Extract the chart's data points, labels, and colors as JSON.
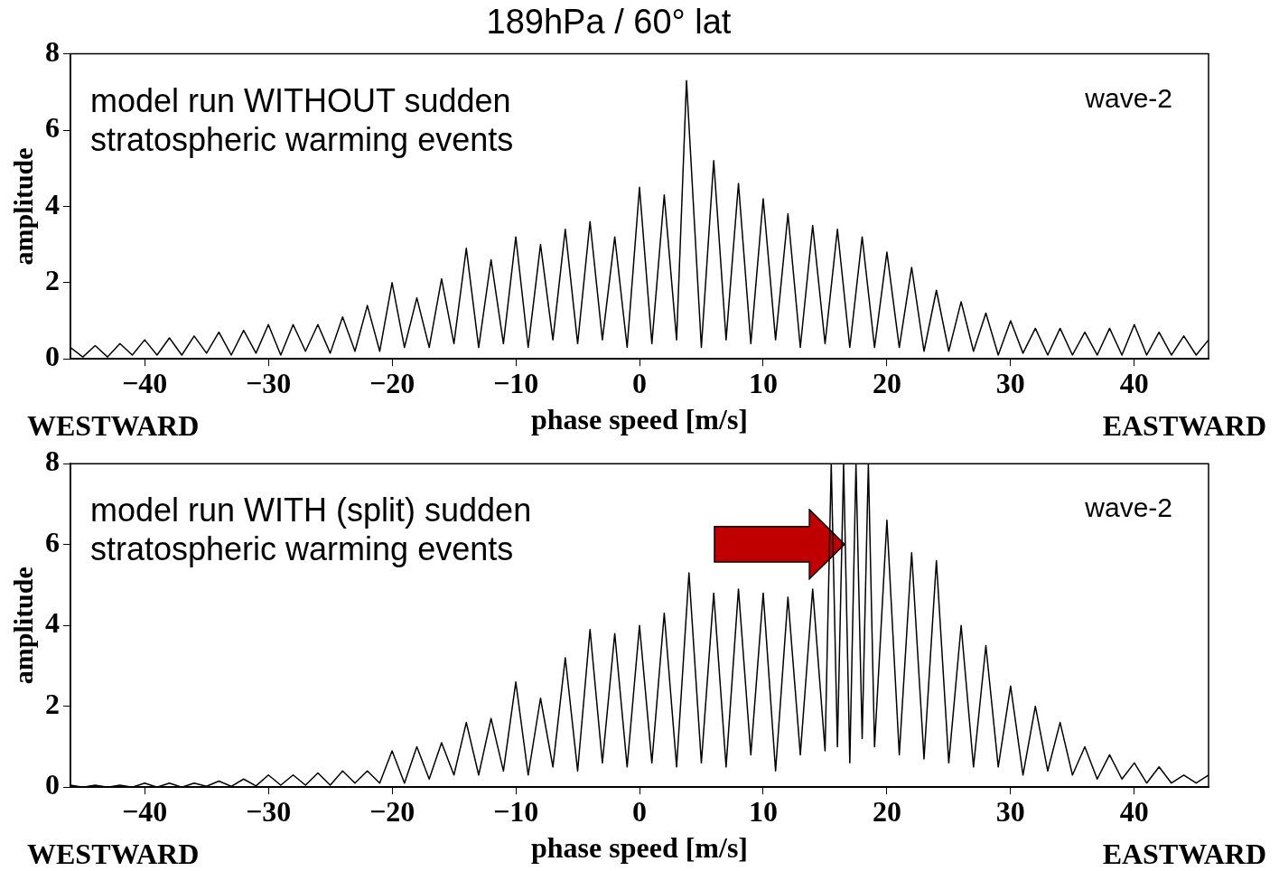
{
  "chart_data": [
    {
      "type": "line",
      "title": "189hPa / 60° lat",
      "xlabel": "phase speed [m/s]",
      "ylabel": "amplitude",
      "xlim": [
        -46,
        46
      ],
      "xticks": [
        -40,
        -30,
        -20,
        -10,
        0,
        10,
        20,
        30,
        40
      ],
      "ylim": [
        0,
        8
      ],
      "yticks": [
        0,
        2,
        4,
        6,
        8
      ],
      "annotations": [
        "model run WITHOUT sudden stratospheric warming events",
        "wave-2",
        "WESTWARD",
        "EASTWARD"
      ],
      "series": [
        {
          "color": "#000000",
          "x": [
            -46,
            -45,
            -44,
            -43,
            -42,
            -41,
            -40,
            -39,
            -38,
            -37,
            -36,
            -35,
            -34,
            -33,
            -32,
            -31,
            -30,
            -29,
            -28,
            -27,
            -26,
            -25,
            -24,
            -23,
            -22,
            -21,
            -20,
            -19,
            -18,
            -17,
            -16,
            -15,
            -14,
            -13,
            -12,
            -11,
            -10,
            -9,
            -8,
            -7,
            -6,
            -5,
            -4,
            -3,
            -2,
            -1,
            0,
            1,
            2,
            3,
            3.8,
            5,
            6,
            7,
            8,
            9,
            10,
            11,
            12,
            13,
            14,
            15,
            16,
            17,
            18,
            19,
            20,
            21,
            22,
            23,
            24,
            25,
            26,
            27,
            28,
            29,
            30,
            31,
            32,
            33,
            34,
            35,
            36,
            37,
            38,
            39,
            40,
            41,
            42,
            43,
            44,
            45,
            46
          ],
          "values": [
            0.3,
            0.05,
            0.35,
            0.05,
            0.4,
            0.1,
            0.5,
            0.1,
            0.55,
            0.1,
            0.6,
            0.15,
            0.7,
            0.1,
            0.75,
            0.15,
            0.9,
            0.1,
            0.9,
            0.2,
            0.9,
            0.15,
            1.1,
            0.2,
            1.4,
            0.2,
            2.0,
            0.3,
            1.6,
            0.3,
            2.1,
            0.4,
            2.9,
            0.3,
            2.6,
            0.4,
            3.2,
            0.3,
            3.0,
            0.5,
            3.4,
            0.4,
            3.6,
            0.5,
            3.2,
            0.3,
            4.5,
            0.4,
            4.3,
            0.5,
            7.3,
            0.3,
            5.2,
            0.5,
            4.6,
            0.4,
            4.2,
            0.5,
            3.8,
            0.3,
            3.5,
            0.4,
            3.4,
            0.3,
            3.2,
            0.3,
            2.8,
            0.3,
            2.4,
            0.2,
            1.8,
            0.2,
            1.5,
            0.2,
            1.2,
            0.1,
            1.0,
            0.15,
            0.8,
            0.1,
            0.8,
            0.1,
            0.7,
            0.1,
            0.8,
            0.1,
            0.9,
            0.1,
            0.7,
            0.1,
            0.6,
            0.1,
            0.5
          ]
        }
      ]
    },
    {
      "type": "line",
      "xlabel": "phase speed [m/s]",
      "ylabel": "amplitude",
      "xlim": [
        -46,
        46
      ],
      "xticks": [
        -40,
        -30,
        -20,
        -10,
        0,
        10,
        20,
        30,
        40
      ],
      "ylim": [
        0,
        8
      ],
      "yticks": [
        0,
        2,
        4,
        6,
        8
      ],
      "annotations": [
        "model run WITH (split) sudden stratospheric warming events",
        "wave-2",
        "WESTWARD",
        "EASTWARD"
      ],
      "series": [
        {
          "color": "#000000",
          "x": [
            -46,
            -45,
            -44,
            -43,
            -42,
            -41,
            -40,
            -39,
            -38,
            -37,
            -36,
            -35,
            -34,
            -33,
            -32,
            -31,
            -30,
            -29,
            -28,
            -27,
            -26,
            -25,
            -24,
            -23,
            -22,
            -21,
            -20,
            -19,
            -18,
            -17,
            -16,
            -15,
            -14,
            -13,
            -12,
            -11,
            -10,
            -9,
            -8,
            -7,
            -6,
            -5,
            -4,
            -3,
            -2,
            -1,
            0,
            1,
            2,
            3,
            4,
            5,
            6,
            7,
            8,
            9,
            10,
            11,
            12,
            13,
            14,
            15,
            15.5,
            16,
            16.5,
            17,
            17.5,
            18,
            18.5,
            19,
            20,
            21,
            22,
            23,
            24,
            25,
            26,
            27,
            28,
            29,
            30,
            31,
            32,
            33,
            34,
            35,
            36,
            37,
            38,
            39,
            40,
            41,
            42,
            43,
            44,
            45,
            46
          ],
          "values": [
            0.05,
            0.0,
            0.05,
            0.0,
            0.05,
            0.0,
            0.1,
            0.0,
            0.1,
            0.0,
            0.1,
            0.02,
            0.15,
            0.02,
            0.2,
            0.03,
            0.3,
            0.05,
            0.3,
            0.05,
            0.35,
            0.05,
            0.4,
            0.1,
            0.4,
            0.1,
            0.9,
            0.1,
            1.0,
            0.2,
            1.1,
            0.3,
            1.6,
            0.3,
            1.7,
            0.4,
            2.6,
            0.3,
            2.2,
            0.5,
            3.2,
            0.4,
            3.9,
            0.6,
            3.8,
            0.5,
            4.0,
            0.6,
            4.3,
            0.5,
            5.3,
            0.6,
            4.8,
            0.5,
            4.9,
            0.8,
            4.8,
            0.4,
            4.7,
            0.8,
            4.9,
            0.9,
            8,
            1.0,
            8,
            0.6,
            8,
            1.2,
            8,
            1.0,
            6.6,
            0.8,
            5.8,
            0.7,
            5.6,
            0.6,
            4.0,
            0.5,
            3.5,
            0.5,
            2.5,
            0.3,
            2.0,
            0.4,
            1.6,
            0.3,
            1.0,
            0.2,
            0.8,
            0.2,
            0.6,
            0.1,
            0.5,
            0.1,
            0.3,
            0.1,
            0.3
          ]
        }
      ]
    }
  ]
}
